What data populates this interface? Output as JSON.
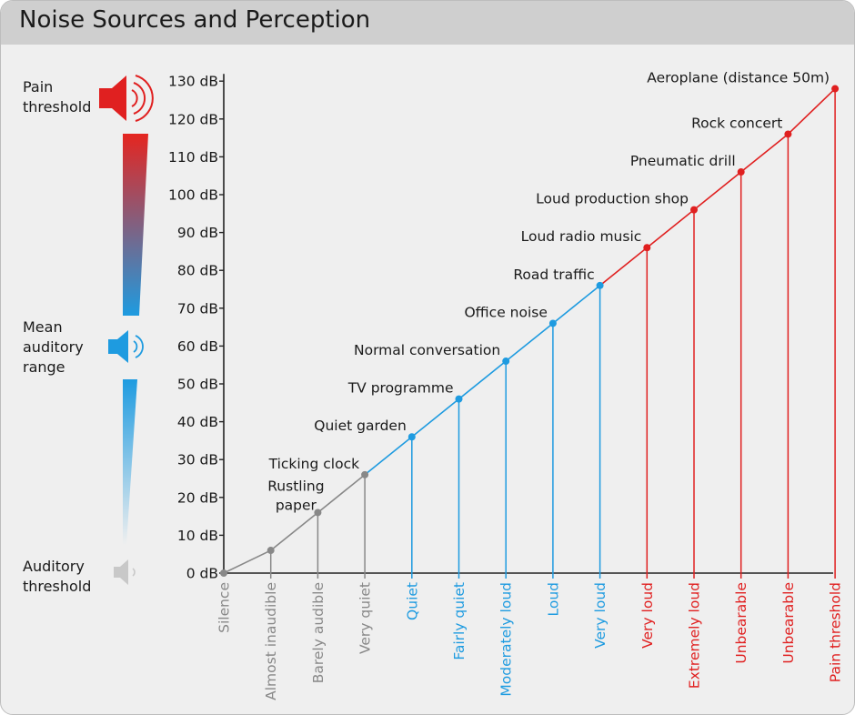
{
  "title": "Noise Sources and Perception",
  "side_labels": {
    "pain": [
      "Pain",
      "threshold"
    ],
    "mean": [
      "Mean",
      "auditory",
      "range"
    ],
    "auditory": [
      "Auditory",
      "threshold"
    ]
  },
  "icons": [
    "speaker-loud-icon",
    "speaker-medium-icon",
    "speaker-quiet-icon"
  ],
  "colors": {
    "grey": "#888888",
    "blue": "#1e9be0",
    "red": "#e02020",
    "axis": "#222222"
  },
  "chart_data": {
    "type": "line",
    "title": "Noise Sources and Perception",
    "ylim": [
      0,
      130
    ],
    "yticks": [
      "0 dB",
      "10 dB",
      "20 dB",
      "30 dB",
      "40 dB",
      "50 dB",
      "60 dB",
      "70 dB",
      "80 dB",
      "90 dB",
      "100 dB",
      "110 dB",
      "120 dB",
      "130 dB"
    ],
    "grid": false,
    "points": [
      {
        "source": "",
        "perception": "Silence",
        "db": 0,
        "zone": "grey"
      },
      {
        "source": "",
        "perception": "Almost inaudible",
        "db": 6,
        "zone": "grey"
      },
      {
        "source": "Rustling paper",
        "perception": "Barely audible",
        "db": 16,
        "zone": "grey"
      },
      {
        "source": "Ticking clock",
        "perception": "Very quiet",
        "db": 26,
        "zone": "grey"
      },
      {
        "source": "Quiet garden",
        "perception": "Quiet",
        "db": 36,
        "zone": "blue"
      },
      {
        "source": "TV programme",
        "perception": "Fairly quiet",
        "db": 46,
        "zone": "blue"
      },
      {
        "source": "Normal conversation",
        "perception": "Moderately loud",
        "db": 56,
        "zone": "blue"
      },
      {
        "source": "Office noise",
        "perception": "Loud",
        "db": 66,
        "zone": "blue"
      },
      {
        "source": "Road traffic",
        "perception": "Very loud",
        "db": 76,
        "zone": "blue"
      },
      {
        "source": "Loud radio music",
        "perception": "Very loud",
        "db": 86,
        "zone": "red"
      },
      {
        "source": "Loud production shop",
        "perception": "Extremely loud",
        "db": 96,
        "zone": "red"
      },
      {
        "source": "Pneumatic drill",
        "perception": "Unbearable",
        "db": 106,
        "zone": "red"
      },
      {
        "source": "Rock concert",
        "perception": "Unbearable",
        "db": 116,
        "zone": "red"
      },
      {
        "source": "Aeroplane (distance 50m)",
        "perception": "Pain threshold",
        "db": 128,
        "zone": "red"
      }
    ]
  }
}
